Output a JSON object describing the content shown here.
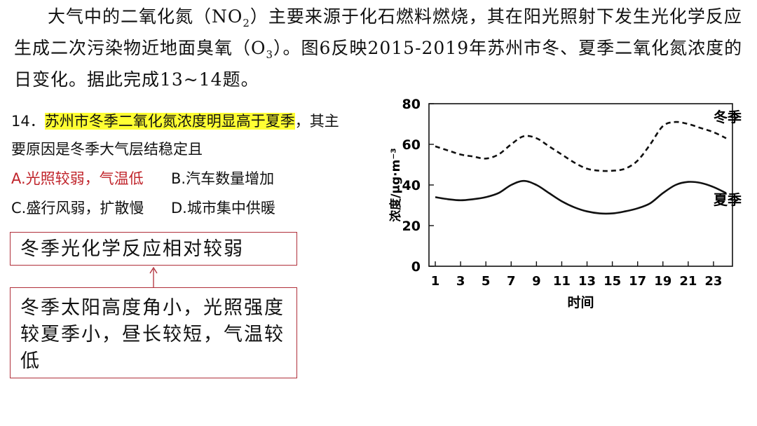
{
  "intro": {
    "part1": "大气中的二氧化氮（NO",
    "sub1": "2",
    "part2": "）主要来源于化石燃料燃烧，其在阳光照射下发生光化学反应生成二次污染物近地面臭氧（O",
    "sub2": "3",
    "part3": "）。图6反映2015-2019年苏州市冬、夏季二氧化氮浓度的日变化。据此完成13~14题。"
  },
  "question": {
    "number": "14．",
    "stem_highlight": "苏州市冬季二氧化氮浓度明显高于夏季",
    "stem_rest": "，其主",
    "stem_cont": "要原因是冬季大气层结稳定且",
    "options": {
      "a": "A.光照较弱，气温低",
      "b": "B.汽车数量增加",
      "c": "C.盛行风弱，扩散慢",
      "d": "D.城市集中供暖"
    }
  },
  "notes": {
    "top": "冬季光化学反应相对较弱",
    "bottom": "冬季太阳高度角小，光照强度较夏季小，昼长较短，气温较低"
  },
  "colors": {
    "highlight": "#ffff33",
    "answer": "#c0242b",
    "note_border": "#b0303a"
  },
  "chart_data": {
    "type": "line",
    "xlabel": "时间",
    "ylabel": "浓度/μg·m⁻³",
    "xlim": [
      0.5,
      24.5
    ],
    "ylim": [
      0,
      80
    ],
    "x_ticks": [
      1,
      3,
      5,
      7,
      9,
      11,
      13,
      15,
      17,
      19,
      21,
      23
    ],
    "y_ticks": [
      0,
      20,
      40,
      60,
      80
    ],
    "series": [
      {
        "name": "冬季",
        "style": "dashed",
        "x": [
          1,
          2,
          3,
          4,
          5,
          6,
          7,
          8,
          9,
          10,
          11,
          12,
          13,
          14,
          15,
          16,
          17,
          18,
          19,
          20,
          21,
          22,
          23,
          24
        ],
        "y": [
          59,
          57,
          55,
          54,
          53,
          55,
          60,
          64,
          63,
          59,
          55,
          51,
          48,
          47,
          47,
          48,
          52,
          60,
          69,
          71,
          70,
          68,
          66,
          63
        ]
      },
      {
        "name": "夏季",
        "style": "solid",
        "x": [
          1,
          2,
          3,
          4,
          5,
          6,
          7,
          8,
          9,
          10,
          11,
          12,
          13,
          14,
          15,
          16,
          17,
          18,
          19,
          20,
          21,
          22,
          23,
          24
        ],
        "y": [
          34,
          33,
          32.5,
          33,
          34,
          36,
          40,
          42,
          40,
          36,
          32,
          29,
          27,
          26,
          26,
          27,
          28.5,
          31,
          36,
          40,
          41.5,
          41,
          39,
          36
        ]
      }
    ]
  }
}
